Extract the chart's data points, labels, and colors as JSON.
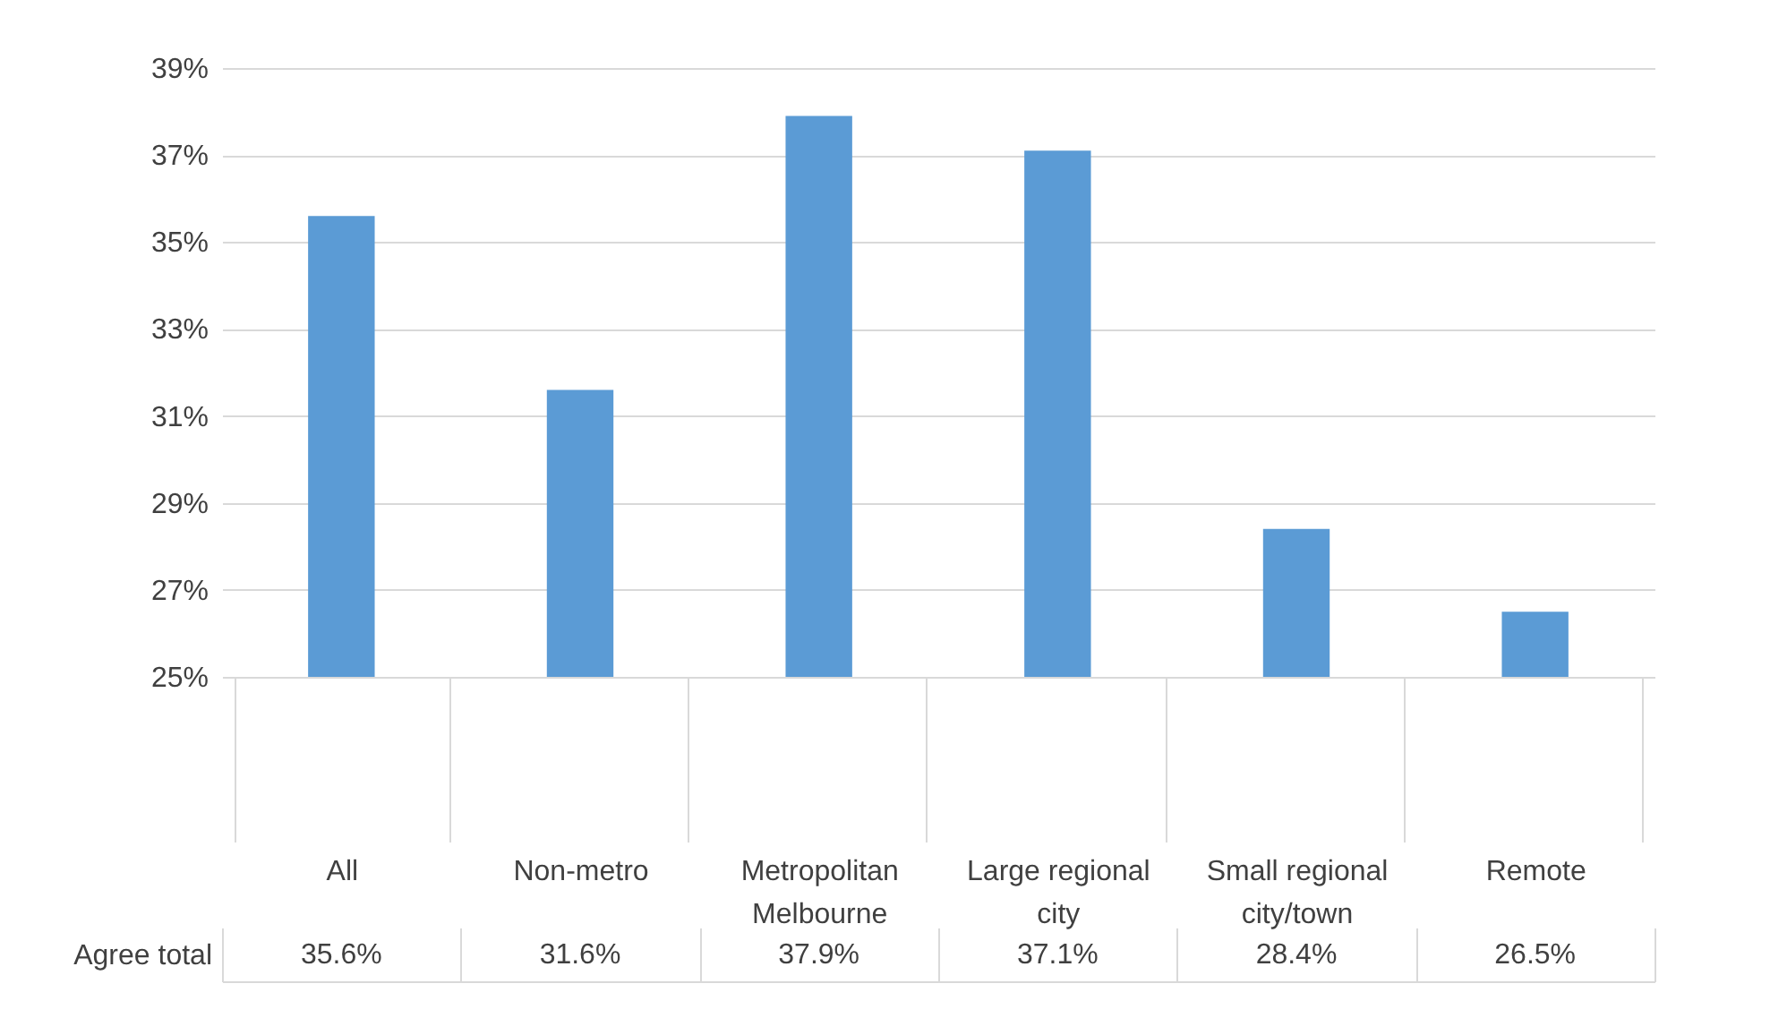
{
  "chart_data": {
    "type": "bar",
    "categories": [
      "All",
      "Non-metro",
      "Metropolitan Melbourne",
      "Large regional city",
      "Small regional city/town",
      "Remote"
    ],
    "series": [
      {
        "name": "Agree total",
        "color": "#5b9bd5",
        "values": [
          35.6,
          31.6,
          37.9,
          37.1,
          28.4,
          26.5
        ],
        "value_labels": [
          "35.6%",
          "31.6%",
          "37.9%",
          "37.1%",
          "28.4%",
          "26.5%"
        ]
      }
    ],
    "ylim": [
      25,
      39
    ],
    "yticks": [
      {
        "value": 25,
        "label": "25%"
      },
      {
        "value": 27,
        "label": "27%"
      },
      {
        "value": 29,
        "label": "29%"
      },
      {
        "value": 31,
        "label": "31%"
      },
      {
        "value": 33,
        "label": "33%"
      },
      {
        "value": 35,
        "label": "35%"
      },
      {
        "value": 37,
        "label": "37%"
      },
      {
        "value": 39,
        "label": "39%"
      }
    ],
    "grid": "y",
    "legend": false
  }
}
